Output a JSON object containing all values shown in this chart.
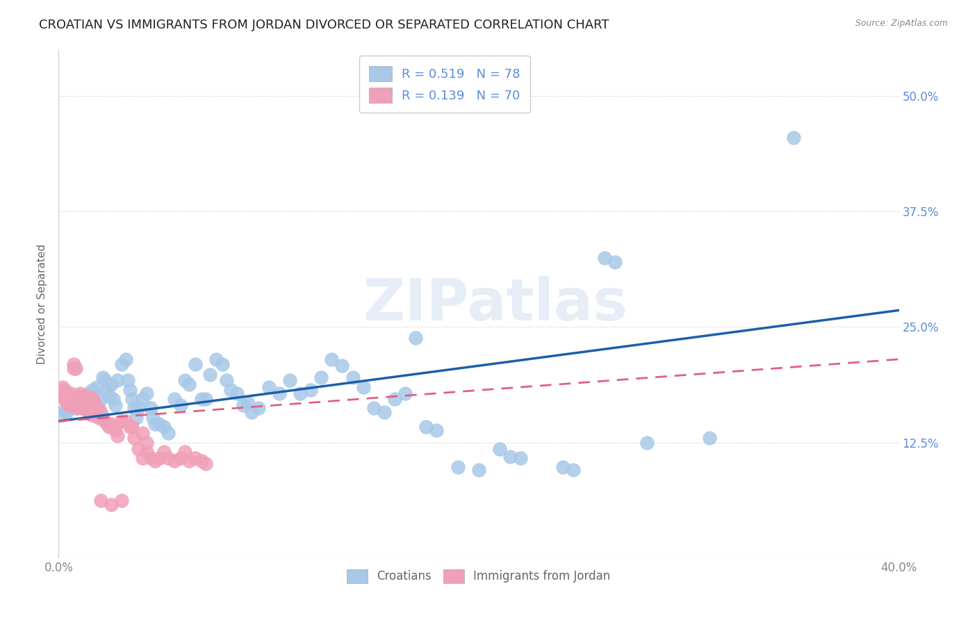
{
  "title": "CROATIAN VS IMMIGRANTS FROM JORDAN DIVORCED OR SEPARATED CORRELATION CHART",
  "source": "Source: ZipAtlas.com",
  "ylabel": "Divorced or Separated",
  "xlim": [
    0.0,
    0.4
  ],
  "ylim": [
    0.0,
    0.55
  ],
  "watermark": "ZIPatlas",
  "croatian_color": "#a8c8e8",
  "jordan_color": "#f0a0b8",
  "trendline_croatian_color": "#1b5faa",
  "trendline_jordan_color": "#e06080",
  "background_color": "#ffffff",
  "grid_color": "#dddddd",
  "title_fontsize": 13,
  "axis_label_fontsize": 11,
  "tick_fontsize": 12,
  "right_tick_color": "#5b8dd9",
  "croatian_scatter": [
    [
      0.002,
      0.155
    ],
    [
      0.003,
      0.16
    ],
    [
      0.004,
      0.158
    ],
    [
      0.005,
      0.162
    ],
    [
      0.006,
      0.165
    ],
    [
      0.007,
      0.168
    ],
    [
      0.008,
      0.162
    ],
    [
      0.009,
      0.17
    ],
    [
      0.01,
      0.175
    ],
    [
      0.011,
      0.172
    ],
    [
      0.012,
      0.165
    ],
    [
      0.013,
      0.17
    ],
    [
      0.014,
      0.178
    ],
    [
      0.015,
      0.175
    ],
    [
      0.016,
      0.182
    ],
    [
      0.017,
      0.178
    ],
    [
      0.018,
      0.185
    ],
    [
      0.019,
      0.162
    ],
    [
      0.02,
      0.172
    ],
    [
      0.021,
      0.195
    ],
    [
      0.022,
      0.192
    ],
    [
      0.023,
      0.182
    ],
    [
      0.024,
      0.175
    ],
    [
      0.025,
      0.188
    ],
    [
      0.026,
      0.172
    ],
    [
      0.027,
      0.165
    ],
    [
      0.028,
      0.192
    ],
    [
      0.03,
      0.21
    ],
    [
      0.032,
      0.215
    ],
    [
      0.033,
      0.192
    ],
    [
      0.034,
      0.182
    ],
    [
      0.035,
      0.172
    ],
    [
      0.036,
      0.162
    ],
    [
      0.037,
      0.152
    ],
    [
      0.038,
      0.162
    ],
    [
      0.04,
      0.172
    ],
    [
      0.042,
      0.178
    ],
    [
      0.044,
      0.162
    ],
    [
      0.045,
      0.152
    ],
    [
      0.046,
      0.145
    ],
    [
      0.048,
      0.145
    ],
    [
      0.05,
      0.142
    ],
    [
      0.052,
      0.135
    ],
    [
      0.055,
      0.172
    ],
    [
      0.058,
      0.165
    ],
    [
      0.06,
      0.192
    ],
    [
      0.062,
      0.188
    ],
    [
      0.065,
      0.21
    ],
    [
      0.068,
      0.172
    ],
    [
      0.07,
      0.172
    ],
    [
      0.072,
      0.198
    ],
    [
      0.075,
      0.215
    ],
    [
      0.078,
      0.21
    ],
    [
      0.08,
      0.192
    ],
    [
      0.082,
      0.182
    ],
    [
      0.085,
      0.178
    ],
    [
      0.088,
      0.165
    ],
    [
      0.09,
      0.168
    ],
    [
      0.092,
      0.158
    ],
    [
      0.095,
      0.162
    ],
    [
      0.1,
      0.185
    ],
    [
      0.105,
      0.178
    ],
    [
      0.11,
      0.192
    ],
    [
      0.115,
      0.178
    ],
    [
      0.12,
      0.182
    ],
    [
      0.125,
      0.195
    ],
    [
      0.13,
      0.215
    ],
    [
      0.135,
      0.208
    ],
    [
      0.14,
      0.195
    ],
    [
      0.145,
      0.185
    ],
    [
      0.15,
      0.162
    ],
    [
      0.155,
      0.158
    ],
    [
      0.16,
      0.172
    ],
    [
      0.165,
      0.178
    ],
    [
      0.17,
      0.238
    ],
    [
      0.175,
      0.142
    ],
    [
      0.18,
      0.138
    ],
    [
      0.19,
      0.098
    ],
    [
      0.2,
      0.095
    ],
    [
      0.21,
      0.118
    ],
    [
      0.215,
      0.11
    ],
    [
      0.22,
      0.108
    ],
    [
      0.24,
      0.098
    ],
    [
      0.245,
      0.095
    ],
    [
      0.26,
      0.325
    ],
    [
      0.265,
      0.32
    ],
    [
      0.28,
      0.125
    ],
    [
      0.31,
      0.13
    ],
    [
      0.35,
      0.455
    ]
  ],
  "jordan_scatter": [
    [
      0.001,
      0.175
    ],
    [
      0.002,
      0.185
    ],
    [
      0.002,
      0.178
    ],
    [
      0.003,
      0.182
    ],
    [
      0.003,
      0.172
    ],
    [
      0.004,
      0.178
    ],
    [
      0.004,
      0.168
    ],
    [
      0.005,
      0.175
    ],
    [
      0.005,
      0.165
    ],
    [
      0.006,
      0.178
    ],
    [
      0.006,
      0.165
    ],
    [
      0.007,
      0.21
    ],
    [
      0.007,
      0.205
    ],
    [
      0.008,
      0.205
    ],
    [
      0.008,
      0.175
    ],
    [
      0.008,
      0.165
    ],
    [
      0.009,
      0.175
    ],
    [
      0.009,
      0.162
    ],
    [
      0.01,
      0.178
    ],
    [
      0.01,
      0.165
    ],
    [
      0.011,
      0.175
    ],
    [
      0.011,
      0.162
    ],
    [
      0.012,
      0.172
    ],
    [
      0.012,
      0.162
    ],
    [
      0.013,
      0.172
    ],
    [
      0.013,
      0.162
    ],
    [
      0.014,
      0.175
    ],
    [
      0.014,
      0.158
    ],
    [
      0.015,
      0.172
    ],
    [
      0.015,
      0.158
    ],
    [
      0.016,
      0.172
    ],
    [
      0.016,
      0.155
    ],
    [
      0.017,
      0.168
    ],
    [
      0.017,
      0.155
    ],
    [
      0.018,
      0.162
    ],
    [
      0.019,
      0.152
    ],
    [
      0.02,
      0.158
    ],
    [
      0.021,
      0.152
    ],
    [
      0.022,
      0.148
    ],
    [
      0.023,
      0.145
    ],
    [
      0.024,
      0.142
    ],
    [
      0.025,
      0.145
    ],
    [
      0.026,
      0.142
    ],
    [
      0.027,
      0.138
    ],
    [
      0.028,
      0.132
    ],
    [
      0.03,
      0.148
    ],
    [
      0.032,
      0.148
    ],
    [
      0.034,
      0.142
    ],
    [
      0.036,
      0.13
    ],
    [
      0.038,
      0.118
    ],
    [
      0.04,
      0.108
    ],
    [
      0.042,
      0.115
    ],
    [
      0.044,
      0.108
    ],
    [
      0.046,
      0.105
    ],
    [
      0.048,
      0.108
    ],
    [
      0.05,
      0.115
    ],
    [
      0.052,
      0.108
    ],
    [
      0.055,
      0.105
    ],
    [
      0.058,
      0.108
    ],
    [
      0.06,
      0.115
    ],
    [
      0.062,
      0.105
    ],
    [
      0.065,
      0.108
    ],
    [
      0.068,
      0.105
    ],
    [
      0.07,
      0.102
    ],
    [
      0.02,
      0.062
    ],
    [
      0.025,
      0.058
    ],
    [
      0.03,
      0.062
    ],
    [
      0.035,
      0.142
    ],
    [
      0.04,
      0.135
    ],
    [
      0.042,
      0.125
    ]
  ],
  "croatian_trend_x": [
    0.0,
    0.4
  ],
  "croatian_trend_y": [
    0.148,
    0.268
  ],
  "jordan_trend_x": [
    0.0,
    0.4
  ],
  "jordan_trend_y": [
    0.148,
    0.215
  ]
}
